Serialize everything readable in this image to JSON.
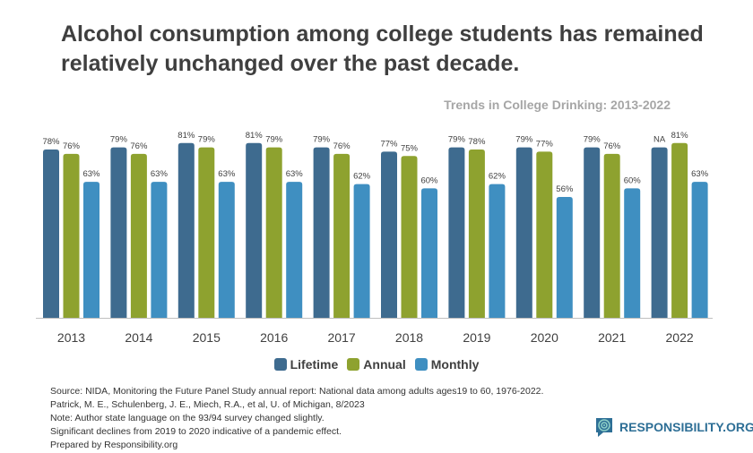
{
  "title": "Alcohol consumption among college students has remained relatively unchanged over the past decade.",
  "chart_data": {
    "type": "bar",
    "title": "Trends in College Drinking: 2013-2022",
    "categories": [
      "2013",
      "2014",
      "2015",
      "2016",
      "2017",
      "2018",
      "2019",
      "2020",
      "2021",
      "2022"
    ],
    "series": [
      {
        "name": "Lifetime",
        "color": "#3e6b8f",
        "values": [
          78,
          79,
          81,
          81,
          79,
          77,
          79,
          79,
          79,
          null
        ],
        "labels": [
          "78%",
          "79%",
          "81%",
          "81%",
          "79%",
          "77%",
          "79%",
          "79%",
          "79%",
          "NA"
        ]
      },
      {
        "name": "Annual",
        "color": "#8ea22f",
        "values": [
          76,
          76,
          79,
          79,
          76,
          75,
          78,
          77,
          76,
          81
        ],
        "labels": [
          "76%",
          "76%",
          "79%",
          "79%",
          "76%",
          "75%",
          "78%",
          "77%",
          "76%",
          "81%"
        ]
      },
      {
        "name": "Monthly",
        "color": "#3f8fc1",
        "values": [
          63,
          63,
          63,
          63,
          62,
          60,
          62,
          56,
          60,
          63
        ],
        "labels": [
          "63%",
          "63%",
          "63%",
          "63%",
          "62%",
          "60%",
          "62%",
          "56%",
          "60%",
          "63%"
        ]
      }
    ],
    "ylim": [
      0,
      100
    ],
    "grid": false,
    "legend": "bottom"
  },
  "footer": [
    "Source: NIDA, Monitoring the Future Panel Study annual report: National data among adults ages19 to 60, 1976-2022.",
    "Patrick, M. E., Schulenberg, J. E., Miech, R.A., et al, U. of Michigan, 8/2023",
    "Note: Author state language on the 93/94 survey changed slightly.",
    "Significant declines from 2019 to 2020 indicative of a pandemic effect.",
    "Prepared by Responsibility.org"
  ],
  "logo": {
    "text": "RESPONSIBILITY.ORG",
    "icon": "speech-bubble-target-icon"
  }
}
